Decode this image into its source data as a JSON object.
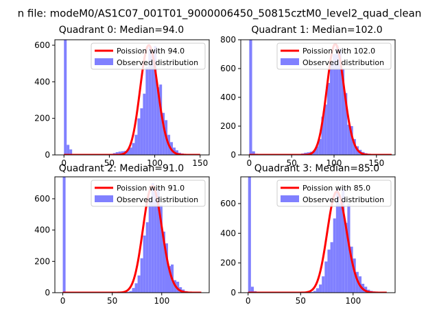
{
  "figure": {
    "suptitle": "n file: modeM0/AS1C07_001T01_9000006450_50815cztM0_level2_quad_clean"
  },
  "colors": {
    "hist": "#8080ff",
    "poisson": "#ff0000",
    "axes": "#000000",
    "background": "#ffffff"
  },
  "chart_data": [
    {
      "type": "bar",
      "title": "Quadrant 0: Median=94.0",
      "median": 94.0,
      "xlim": [
        -10,
        160
      ],
      "ylim": [
        0,
        630
      ],
      "xticks": [
        0,
        50,
        100,
        150
      ],
      "yticks": [
        0,
        200,
        400,
        600
      ],
      "legend_position": "upper right",
      "legend": [
        "Poission with 94.0",
        "Observed distribution"
      ],
      "hist": {
        "bin_width": 3,
        "bins": [
          [
            0,
            630
          ],
          [
            3,
            55
          ],
          [
            6,
            30
          ],
          [
            9,
            5
          ],
          [
            12,
            4
          ],
          [
            15,
            4
          ],
          [
            18,
            3
          ],
          [
            21,
            3
          ],
          [
            24,
            3
          ],
          [
            27,
            3
          ],
          [
            30,
            3
          ],
          [
            33,
            3
          ],
          [
            36,
            3
          ],
          [
            39,
            4
          ],
          [
            42,
            3
          ],
          [
            45,
            3
          ],
          [
            48,
            3
          ],
          [
            51,
            6
          ],
          [
            54,
            10
          ],
          [
            57,
            15
          ],
          [
            60,
            18
          ],
          [
            63,
            20
          ],
          [
            66,
            22
          ],
          [
            69,
            30
          ],
          [
            72,
            40
          ],
          [
            75,
            65
          ],
          [
            78,
            110
          ],
          [
            81,
            200
          ],
          [
            84,
            255
          ],
          [
            87,
            335
          ],
          [
            90,
            480
          ],
          [
            93,
            590
          ],
          [
            96,
            545
          ],
          [
            99,
            595
          ],
          [
            102,
            370
          ],
          [
            105,
            385
          ],
          [
            108,
            230
          ],
          [
            111,
            190
          ],
          [
            114,
            110
          ],
          [
            117,
            70
          ],
          [
            120,
            40
          ],
          [
            123,
            25
          ],
          [
            126,
            12
          ],
          [
            129,
            8
          ],
          [
            132,
            5
          ],
          [
            135,
            3
          ],
          [
            138,
            2
          ],
          [
            141,
            1
          ],
          [
            144,
            1
          ]
        ]
      },
      "poisson": {
        "lambda": 94.0,
        "peak": 600,
        "x_range": [
          0,
          150
        ]
      }
    },
    {
      "type": "bar",
      "title": "Quadrant 1: Median=102.0",
      "median": 102.0,
      "xlim": [
        -10,
        172
      ],
      "ylim": [
        0,
        800
      ],
      "xticks": [
        0,
        50,
        100,
        150
      ],
      "yticks": [
        0,
        200,
        400,
        600,
        800
      ],
      "legend_position": "upper right",
      "legend": [
        "Poission with 102.0",
        "Observed distribution"
      ],
      "hist": {
        "bin_width": 3.4,
        "bins": [
          [
            0,
            800
          ],
          [
            3.4,
            25
          ],
          [
            6.8,
            8
          ],
          [
            10.2,
            4
          ],
          [
            13.6,
            3
          ],
          [
            17,
            3
          ],
          [
            20.4,
            3
          ],
          [
            23.8,
            3
          ],
          [
            27.2,
            3
          ],
          [
            30.6,
            3
          ],
          [
            34,
            3
          ],
          [
            37.4,
            3
          ],
          [
            40.8,
            3
          ],
          [
            44.2,
            3
          ],
          [
            47.6,
            3
          ],
          [
            51,
            3
          ],
          [
            54.4,
            4
          ],
          [
            57.8,
            6
          ],
          [
            61.2,
            10
          ],
          [
            64.6,
            15
          ],
          [
            68,
            18
          ],
          [
            71.4,
            22
          ],
          [
            74.8,
            30
          ],
          [
            78.2,
            60
          ],
          [
            81.6,
            110
          ],
          [
            85,
            265
          ],
          [
            88.4,
            350
          ],
          [
            91.8,
            500
          ],
          [
            95.2,
            640
          ],
          [
            98.6,
            700
          ],
          [
            102,
            760
          ],
          [
            105.4,
            740
          ],
          [
            108.8,
            600
          ],
          [
            112.2,
            430
          ],
          [
            115.6,
            210
          ],
          [
            119,
            200
          ],
          [
            122.4,
            110
          ],
          [
            125.8,
            60
          ],
          [
            129.2,
            35
          ],
          [
            132.6,
            20
          ],
          [
            136,
            12
          ],
          [
            139.4,
            8
          ],
          [
            142.8,
            5
          ],
          [
            146.2,
            4
          ],
          [
            149.6,
            3
          ],
          [
            153,
            3
          ],
          [
            156.4,
            2
          ],
          [
            159.8,
            2
          ],
          [
            163.2,
            1
          ]
        ]
      },
      "poisson": {
        "lambda": 102.0,
        "peak": 770,
        "x_range": [
          0,
          168
        ]
      }
    },
    {
      "type": "bar",
      "title": "Quadrant 2: Median=91.0",
      "median": 91.0,
      "xlim": [
        -8,
        148
      ],
      "ylim": [
        0,
        740
      ],
      "xticks": [
        0,
        50,
        100
      ],
      "yticks": [
        0,
        200,
        400,
        600
      ],
      "legend_position": "upper right",
      "legend": [
        "Poission with 91.0",
        "Observed distribution"
      ],
      "hist": {
        "bin_width": 2.8,
        "bins": [
          [
            0,
            740
          ],
          [
            2.8,
            3
          ],
          [
            5.6,
            3
          ],
          [
            8.4,
            3
          ],
          [
            11.2,
            3
          ],
          [
            14,
            3
          ],
          [
            16.8,
            3
          ],
          [
            19.6,
            3
          ],
          [
            22.4,
            3
          ],
          [
            25.2,
            3
          ],
          [
            28,
            3
          ],
          [
            30.8,
            3
          ],
          [
            33.6,
            3
          ],
          [
            36.4,
            3
          ],
          [
            39.2,
            3
          ],
          [
            42,
            3
          ],
          [
            44.8,
            3
          ],
          [
            47.6,
            3
          ],
          [
            50.4,
            3
          ],
          [
            53.2,
            3
          ],
          [
            56,
            3
          ],
          [
            58.8,
            3
          ],
          [
            61.6,
            3
          ],
          [
            64.4,
            5
          ],
          [
            67.2,
            10
          ],
          [
            70,
            30
          ],
          [
            72.8,
            60
          ],
          [
            75.6,
            110
          ],
          [
            78.4,
            220
          ],
          [
            81.2,
            365
          ],
          [
            84,
            450
          ],
          [
            86.8,
            610
          ],
          [
            89.6,
            700
          ],
          [
            92.4,
            640
          ],
          [
            95.2,
            660
          ],
          [
            98,
            560
          ],
          [
            100.8,
            390
          ],
          [
            103.6,
            315
          ],
          [
            106.4,
            170
          ],
          [
            109.2,
            180
          ],
          [
            112,
            80
          ],
          [
            114.8,
            70
          ],
          [
            117.6,
            35
          ],
          [
            120.4,
            20
          ],
          [
            123.2,
            10
          ],
          [
            126,
            5
          ],
          [
            128.8,
            3
          ],
          [
            131.6,
            2
          ],
          [
            134.4,
            1
          ]
        ]
      },
      "poisson": {
        "lambda": 91.0,
        "peak": 680,
        "x_range": [
          0,
          140
        ]
      }
    },
    {
      "type": "bar",
      "title": "Quadrant 3: Median=85.0",
      "median": 85.0,
      "xlim": [
        -7,
        140
      ],
      "ylim": [
        0,
        780
      ],
      "xticks": [
        0,
        50,
        100
      ],
      "yticks": [
        0,
        200,
        400,
        600
      ],
      "legend_position": "upper right",
      "legend": [
        "Poission with 85.0",
        "Observed distribution"
      ],
      "hist": {
        "bin_width": 2.7,
        "bins": [
          [
            0,
            780
          ],
          [
            2.7,
            40
          ],
          [
            5.4,
            10
          ],
          [
            8.1,
            5
          ],
          [
            10.8,
            3
          ],
          [
            13.5,
            3
          ],
          [
            16.2,
            3
          ],
          [
            18.9,
            3
          ],
          [
            21.6,
            3
          ],
          [
            24.3,
            3
          ],
          [
            27,
            3
          ],
          [
            29.7,
            3
          ],
          [
            32.4,
            3
          ],
          [
            35.1,
            3
          ],
          [
            37.8,
            3
          ],
          [
            40.5,
            3
          ],
          [
            43.2,
            3
          ],
          [
            45.9,
            3
          ],
          [
            48.6,
            3
          ],
          [
            51.3,
            3
          ],
          [
            54,
            3
          ],
          [
            56.7,
            3
          ],
          [
            59.4,
            5
          ],
          [
            62.1,
            12
          ],
          [
            64.8,
            30
          ],
          [
            67.5,
            55
          ],
          [
            70.2,
            110
          ],
          [
            72.9,
            210
          ],
          [
            75.6,
            290
          ],
          [
            78.3,
            340
          ],
          [
            81,
            500
          ],
          [
            83.7,
            700
          ],
          [
            86.4,
            600
          ],
          [
            89.1,
            700
          ],
          [
            91.8,
            470
          ],
          [
            94.5,
            600
          ],
          [
            97.2,
            310
          ],
          [
            99.9,
            230
          ],
          [
            102.6,
            140
          ],
          [
            105.3,
            110
          ],
          [
            108,
            60
          ],
          [
            110.7,
            40
          ],
          [
            113.4,
            20
          ],
          [
            116.1,
            12
          ],
          [
            118.8,
            8
          ],
          [
            121.5,
            5
          ],
          [
            124.2,
            3
          ],
          [
            126.9,
            2
          ],
          [
            129.6,
            1
          ]
        ]
      },
      "poisson": {
        "lambda": 85.0,
        "peak": 680,
        "x_range": [
          0,
          132
        ]
      }
    }
  ]
}
